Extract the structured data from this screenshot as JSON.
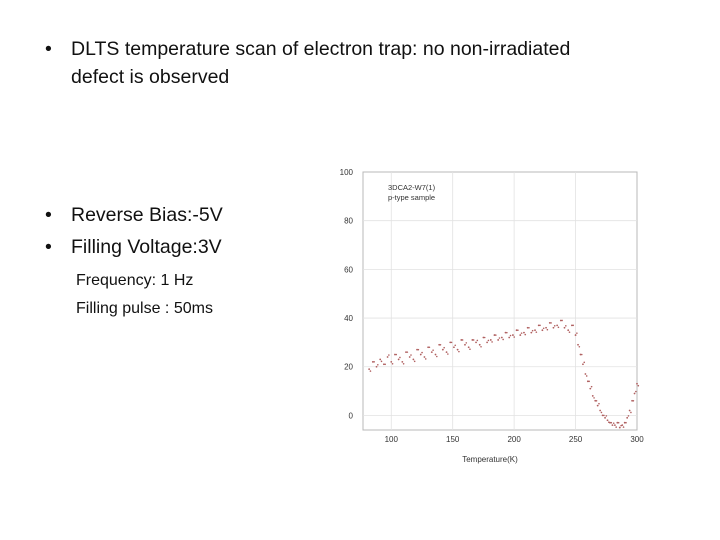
{
  "slide": {
    "bullet1_line1": "DLTS  temperature scan of electron trap: no non-irradiated",
    "bullet1_line2": "defect  is observed",
    "bullet2": "Reverse Bias:-5V",
    "bullet3": "Filling Voltage:3V",
    "sub1": "Frequency: 1 Hz",
    "sub2": "Filling pulse : 50ms",
    "bullet_glyph": "•"
  },
  "chart_data": {
    "type": "scatter",
    "title": "",
    "annotation_line1": "3DCA2-W7(1)",
    "annotation_line2": "p-type sample",
    "xlabel": "Temperature(K)",
    "ylabel": "",
    "xlim": [
      77,
      300
    ],
    "ylim": [
      -6,
      100
    ],
    "x_ticks": [
      100,
      150,
      200,
      250,
      300
    ],
    "y_ticks": [
      0,
      20,
      40,
      60,
      80,
      100
    ],
    "grid": true,
    "point_color": "#b06060",
    "series": [
      {
        "x": [
          82,
          85,
          88,
          91,
          94,
          97,
          100,
          103,
          106,
          109,
          112,
          115,
          118,
          121,
          124,
          127,
          130,
          133,
          136,
          139,
          142,
          145,
          148,
          151,
          154,
          157,
          160,
          163,
          166,
          169,
          172,
          175,
          178,
          181,
          184,
          187,
          190,
          193,
          196,
          199,
          202,
          205,
          208,
          211,
          214,
          217,
          220,
          223,
          226,
          229,
          232,
          235,
          238,
          241,
          244,
          247,
          250,
          252,
          254,
          256,
          258,
          260,
          262,
          264,
          266,
          268,
          270,
          272,
          274,
          276,
          278,
          280,
          282,
          284,
          286,
          288,
          290,
          292,
          294,
          296,
          298,
          300
        ],
        "y": [
          19,
          22,
          20,
          23,
          21,
          24,
          22,
          25,
          23,
          22,
          26,
          24,
          23,
          27,
          25,
          24,
          28,
          26,
          25,
          29,
          27,
          26,
          30,
          28,
          27,
          31,
          29,
          28,
          31,
          30,
          29,
          32,
          30,
          31,
          33,
          31,
          32,
          34,
          32,
          33,
          35,
          33,
          34,
          36,
          34,
          35,
          37,
          35,
          36,
          38,
          36,
          37,
          39,
          36,
          35,
          37,
          33,
          29,
          25,
          21,
          17,
          14,
          11,
          8,
          6,
          4,
          2,
          0,
          -1,
          -2,
          -3,
          -4,
          -4,
          -3,
          -5,
          -4,
          -3,
          -1,
          2,
          6,
          9,
          13
        ]
      }
    ]
  }
}
